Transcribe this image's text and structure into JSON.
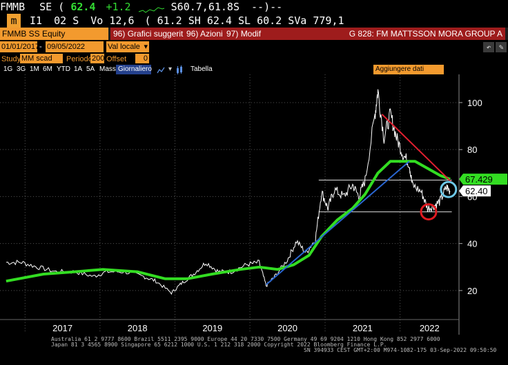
{
  "quote": {
    "ticker": "FMMB",
    "exchange": "SE",
    "last_prefix": "(",
    "last": "62.4",
    "change": "+1.2",
    "day_range": "S60.7,61.8S",
    "trend": "--)--",
    "row2_prefix": "I1",
    "time": "02 S",
    "volume": "Vo 12,6",
    "open_hi": "( 61.2 SH 62.4 SL 60.2 SVa 779,1"
  },
  "toolbar": {
    "security": "FMMB SS Equity",
    "menu_1_num": "96)",
    "menu_1": "Grafici suggeriti",
    "menu_2_num": "96)",
    "menu_2": "Azioni",
    "menu_3_num": "97)",
    "menu_3": "Modif",
    "dropdown": "▾",
    "title": "G 828: FM MATTSSON MORA GROUP A"
  },
  "controls": {
    "start_date": "01/01/2017",
    "date_sep": "-",
    "end_date": "09/05/2022",
    "currency": "Val locale",
    "study_label": "Study",
    "study_value": "MM scad",
    "period_label": "Periodo",
    "period_value": "200",
    "offset_label": "Offset",
    "offset_value": "0"
  },
  "periods": [
    "1G",
    "3G",
    "1M",
    "6M",
    "YTD",
    "1A",
    "5A",
    "Mass"
  ],
  "active_period": "Giornaliero",
  "view_table": "Tabella",
  "add_data": "Aggiungere dati",
  "chart_data": {
    "type": "line",
    "y_ticks": [
      20,
      40,
      60,
      80,
      100
    ],
    "ylim": [
      10,
      112
    ],
    "x_labels": [
      "2017",
      "2018",
      "2019",
      "2020",
      "2021",
      "2022"
    ],
    "xlim": [
      "2017-01-01",
      "2022-09-02"
    ],
    "last_price_label": "62.40",
    "ma_label": "67.429",
    "colors": {
      "price": "#ffffff",
      "ma": "#33dd22",
      "trend_up": "#2a66d0",
      "trend_down": "#e02030",
      "circle_low": "#e01a20",
      "circle_current": "#6ec8e8",
      "last_badge_bg": "#ffffff",
      "ma_badge_bg": "#33dd22"
    },
    "series": [
      {
        "points": [
          [
            "2016-10-01",
            32
          ],
          [
            "2016-12-15",
            32
          ],
          [
            "2017-03-01",
            30
          ],
          [
            "2017-06-01",
            28
          ],
          [
            "2017-09-01",
            28
          ],
          [
            "2017-12-01",
            26
          ],
          [
            "2018-02-01",
            28
          ],
          [
            "2018-05-01",
            28
          ],
          [
            "2018-08-01",
            26
          ],
          [
            "2018-10-01",
            24
          ],
          [
            "2018-12-15",
            19
          ],
          [
            "2019-02-01",
            23
          ],
          [
            "2019-04-01",
            27
          ],
          [
            "2019-06-01",
            32
          ],
          [
            "2019-08-01",
            28
          ],
          [
            "2019-10-01",
            28
          ],
          [
            "2019-12-15",
            31
          ],
          [
            "2020-02-15",
            32
          ],
          [
            "2020-03-20",
            22
          ],
          [
            "2020-05-01",
            26
          ],
          [
            "2020-07-01",
            33
          ],
          [
            "2020-08-15",
            41
          ],
          [
            "2020-10-01",
            36
          ],
          [
            "2020-11-15",
            42
          ],
          [
            "2020-12-15",
            62
          ],
          [
            "2021-01-15",
            55
          ],
          [
            "2021-02-15",
            63
          ],
          [
            "2021-04-01",
            60
          ],
          [
            "2021-05-15",
            65
          ],
          [
            "2021-06-15",
            60
          ],
          [
            "2021-07-15",
            67
          ],
          [
            "2021-09-01",
            95
          ],
          [
            "2021-09-15",
            105
          ],
          [
            "2021-10-15",
            85
          ],
          [
            "2021-11-15",
            95
          ],
          [
            "2021-12-15",
            85
          ],
          [
            "2022-01-15",
            78
          ],
          [
            "2022-02-15",
            74
          ],
          [
            "2022-03-01",
            65
          ],
          [
            "2022-04-15",
            62
          ],
          [
            "2022-05-15",
            55
          ],
          [
            "2022-06-15",
            56
          ],
          [
            "2022-07-15",
            58
          ],
          [
            "2022-08-15",
            64
          ],
          [
            "2022-09-02",
            62.4
          ]
        ]
      },
      {
        "points": [
          [
            "2016-10-01",
            24
          ],
          [
            "2017-04-01",
            27
          ],
          [
            "2017-09-01",
            28
          ],
          [
            "2018-01-15",
            29
          ],
          [
            "2018-07-01",
            28
          ],
          [
            "2018-11-15",
            25
          ],
          [
            "2019-03-01",
            25
          ],
          [
            "2019-07-01",
            27
          ],
          [
            "2019-11-15",
            29
          ],
          [
            "2020-02-15",
            30
          ],
          [
            "2020-05-15",
            29
          ],
          [
            "2020-08-01",
            31
          ],
          [
            "2020-10-15",
            35
          ],
          [
            "2020-12-15",
            43
          ],
          [
            "2021-03-01",
            50
          ],
          [
            "2021-05-15",
            55
          ],
          [
            "2021-07-15",
            61
          ],
          [
            "2021-09-15",
            70
          ],
          [
            "2021-11-15",
            75
          ],
          [
            "2022-01-15",
            75
          ],
          [
            "2022-03-15",
            75
          ],
          [
            "2022-05-15",
            72
          ],
          [
            "2022-07-15",
            69
          ],
          [
            "2022-09-02",
            67.4
          ]
        ]
      }
    ],
    "trendlines": [
      {
        "from": [
          "2020-03-20",
          22.5
        ],
        "to": [
          "2022-02-15",
          75
        ]
      },
      {
        "from": [
          "2021-10-05",
          95
        ],
        "to": [
          "2022-09-10",
          66
        ]
      }
    ],
    "hlines": [
      {
        "y": 67,
        "from": "2020-12-01",
        "to": "2022-09-10"
      },
      {
        "y": 53.5,
        "from": "2020-12-01",
        "to": "2022-09-10"
      }
    ],
    "circles": [
      {
        "date": "2022-05-20",
        "y": 53.5
      },
      {
        "date": "2022-08-25",
        "y": 63
      }
    ]
  },
  "footer": {
    "line1": "Australia 61 2 9777 8600  Brazil 5511 2395 9000  Europe 44 20 7330 7500  Germany 49 69 9204 1210  Hong Kong 852 2977 6000",
    "line2": "Japan 81 3 4565 8900          Singapore 65 6212 1000          U.S. 1 212 318 2000          Copyright 2022 Bloomberg Finance L.P.",
    "line3": "SN 394933 CEST  GMT+2:00 M974-1082-175 03-Sep-2022 09:50:50"
  }
}
